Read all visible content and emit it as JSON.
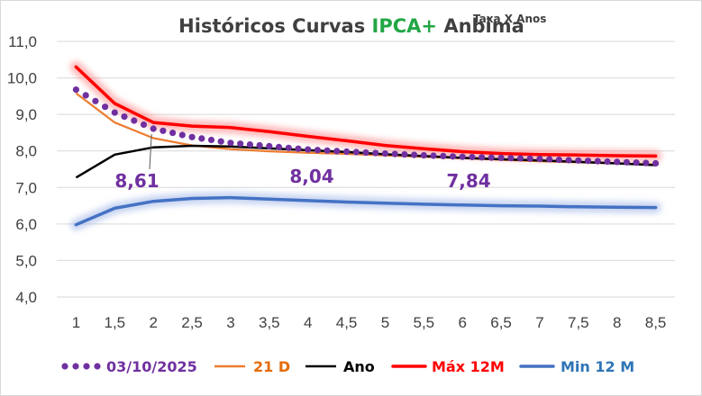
{
  "chart_data": {
    "type": "line",
    "title": {
      "before": "Históricos Curvas ",
      "highlight": "IPCA+",
      "after": " Anbima",
      "superscript": "Taxa X Anos"
    },
    "x": [
      1,
      1.5,
      2,
      2.5,
      3,
      3.5,
      4,
      4.5,
      5,
      5.5,
      6,
      6.5,
      7,
      7.5,
      8,
      8.5
    ],
    "x_tick_labels": [
      "1",
      "1,5",
      "2",
      "2,5",
      "3",
      "3,5",
      "4",
      "4,5",
      "5",
      "5,5",
      "6",
      "6,5",
      "7",
      "7,5",
      "8",
      "8,5"
    ],
    "ylim": [
      4.0,
      11.0
    ],
    "y_tick_labels": [
      "4,0",
      "5,0",
      "6,0",
      "7,0",
      "8,0",
      "9,0",
      "10,0",
      "11,0"
    ],
    "grid": true,
    "legend_position": "bottom",
    "series": [
      {
        "name": "03/10/2025",
        "style": "dotted",
        "color": "#7030a0",
        "values": [
          9.68,
          9.05,
          8.61,
          8.38,
          8.22,
          8.13,
          8.04,
          7.98,
          7.93,
          7.88,
          7.84,
          7.81,
          7.78,
          7.74,
          7.7,
          7.66
        ]
      },
      {
        "name": "21 D",
        "style": "solid",
        "color": "#ed7d31",
        "values": [
          9.58,
          8.78,
          8.35,
          8.15,
          8.05,
          7.99,
          7.95,
          7.92,
          7.88,
          7.84,
          7.8,
          7.76,
          7.72,
          7.69,
          7.66,
          7.63
        ]
      },
      {
        "name": "Ano",
        "style": "solid",
        "color": "#000000",
        "values": [
          7.27,
          7.9,
          8.1,
          8.14,
          8.12,
          8.07,
          8.02,
          7.97,
          7.91,
          7.86,
          7.81,
          7.77,
          7.74,
          7.7,
          7.66,
          7.61
        ]
      },
      {
        "name": "Máx 12M",
        "style": "glow",
        "color": "#ff0000",
        "values": [
          10.3,
          9.3,
          8.78,
          8.68,
          8.64,
          8.53,
          8.4,
          8.28,
          8.15,
          8.06,
          7.98,
          7.93,
          7.9,
          7.89,
          7.87,
          7.86
        ]
      },
      {
        "name": "Min 12 M",
        "style": "glow",
        "color": "#4472c4",
        "values": [
          5.98,
          6.43,
          6.62,
          6.7,
          6.72,
          6.68,
          6.64,
          6.6,
          6.57,
          6.54,
          6.52,
          6.5,
          6.49,
          6.47,
          6.46,
          6.45
        ]
      }
    ],
    "annotations": [
      {
        "text": "8,61",
        "x": 2
      },
      {
        "text": "8,04",
        "x": 4
      },
      {
        "text": "7,84",
        "x": 6
      }
    ]
  }
}
